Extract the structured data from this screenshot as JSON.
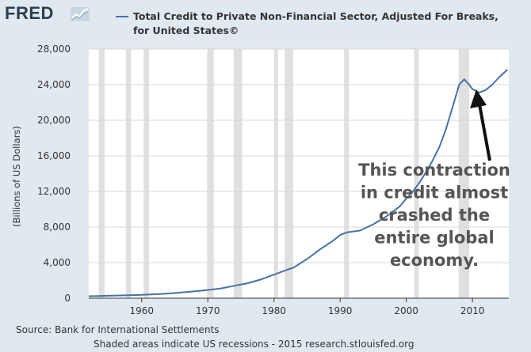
{
  "header": {
    "logo_text": "FRED",
    "logo_icon": "trend-line-chart-icon"
  },
  "legend": {
    "text": "Total Credit to Private Non-Financial Sector, Adjusted For Breaks, for United States©"
  },
  "footer": {
    "source": "Source: Bank for International Settlements",
    "note": "Shaded areas indicate US recessions - 2015 research.stlouisfed.org"
  },
  "colors": {
    "page_background": "#e1e9f0",
    "plot_background": "#ffffff",
    "series_line": "#4572a7",
    "recession_shade": "#e0e0e0",
    "annotation_text": "#555555",
    "arrow": "#111111"
  },
  "chart_data": {
    "type": "line",
    "title": "",
    "xlabel": "",
    "ylabel": "(Billions of US Dollars)",
    "xlim": [
      1952,
      2015.5
    ],
    "ylim": [
      0,
      28000
    ],
    "x_ticks": [
      1960,
      1970,
      1980,
      1990,
      2000,
      2010
    ],
    "y_ticks": [
      0,
      4000,
      8000,
      12000,
      16000,
      20000,
      24000,
      28000
    ],
    "y_tick_labels": [
      "0",
      "4,000",
      "8,000",
      "12,000",
      "16,000",
      "20,000",
      "24,000",
      "28,000"
    ],
    "grid": "horizontal",
    "legend_position": "top",
    "recessions": [
      [
        1953.5,
        1954.4
      ],
      [
        1957.6,
        1958.4
      ],
      [
        1960.3,
        1961.1
      ],
      [
        1969.9,
        1970.9
      ],
      [
        1973.9,
        1975.2
      ],
      [
        1980.0,
        1980.6
      ],
      [
        1981.6,
        1982.9
      ],
      [
        1990.6,
        1991.3
      ],
      [
        2001.2,
        2001.9
      ],
      [
        2007.9,
        2009.5
      ]
    ],
    "series": [
      {
        "name": "Total Credit to Private Non-Financial Sector, Adjusted For Breaks, for United States©",
        "x": [
          1952,
          1955,
          1958,
          1960,
          1963,
          1965,
          1968,
          1970,
          1972,
          1974,
          1975,
          1976,
          1978,
          1980,
          1982,
          1983,
          1985,
          1987,
          1989,
          1990,
          1991,
          1993,
          1995,
          1997,
          1999,
          2000,
          2001,
          2002,
          2003,
          2004,
          2005,
          2006,
          2007,
          2008,
          2008.75,
          2009.5,
          2010,
          2011,
          2012,
          2013,
          2014,
          2015.3
        ],
        "values": [
          220,
          280,
          330,
          380,
          480,
          580,
          770,
          920,
          1100,
          1400,
          1550,
          1680,
          2100,
          2650,
          3200,
          3450,
          4400,
          5500,
          6500,
          7100,
          7400,
          7600,
          8300,
          9200,
          10300,
          11200,
          12000,
          13000,
          14200,
          15500,
          17000,
          19000,
          21500,
          24000,
          24600,
          24000,
          23500,
          23100,
          23400,
          24000,
          24800,
          25700
        ]
      }
    ],
    "annotations": [
      "This contraction",
      "in credit almost",
      "crashed the",
      "entire global",
      "economy."
    ]
  }
}
